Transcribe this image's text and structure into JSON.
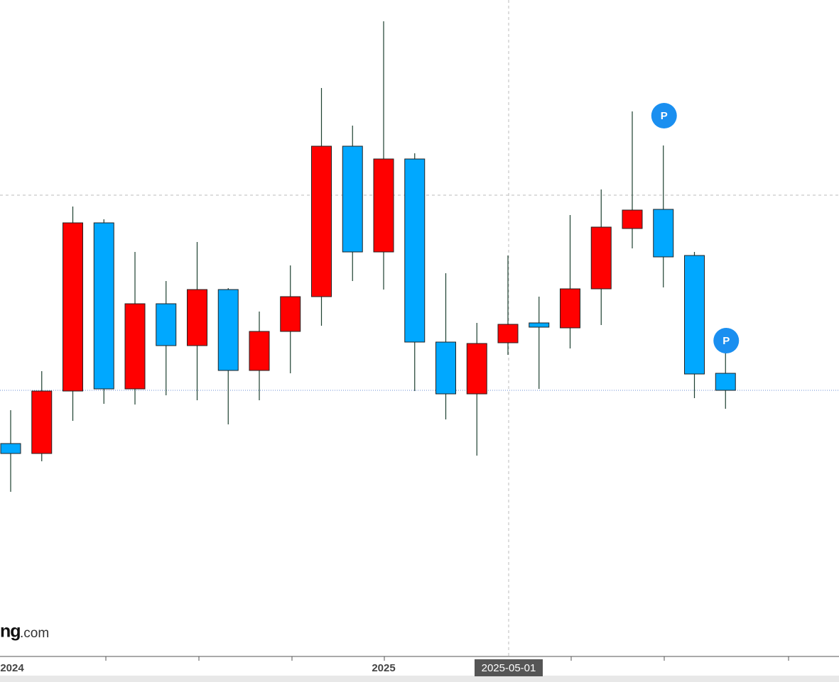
{
  "chart_data": {
    "type": "candlestick",
    "categories": [
      "2024",
      null,
      null,
      null,
      null,
      null,
      null,
      null,
      null,
      null,
      null,
      null,
      "2025",
      null,
      null,
      null,
      null,
      null,
      null,
      null,
      null,
      null,
      null,
      null
    ],
    "series": [
      {
        "up_color": "#ff0000",
        "down_color": "#00a8ff",
        "open": [
          300,
          286,
          374,
          611,
          377,
          497,
          438,
          517,
          403,
          458,
          507,
          719,
          570,
          701,
          443,
          370,
          442,
          470,
          463,
          518,
          603,
          630,
          565,
          399
        ],
        "high": [
          347,
          402,
          634,
          616,
          570,
          529,
          584,
          519,
          486,
          551,
          801,
          748,
          895,
          709,
          540,
          470,
          565,
          507,
          622,
          658,
          768,
          720,
          570,
          440
        ],
        "low": [
          232,
          275,
          332,
          356,
          355,
          368,
          361,
          327,
          361,
          399,
          466,
          529,
          517,
          374,
          334,
          283,
          425,
          377,
          434,
          467,
          575,
          520,
          364,
          349
        ],
        "close": [
          286,
          374,
          611,
          377,
          497,
          438,
          517,
          403,
          458,
          507,
          719,
          570,
          701,
          443,
          370,
          441,
          468,
          464,
          518,
          605,
          629,
          563,
          398,
          375
        ],
        "markers": [
          null,
          null,
          null,
          null,
          null,
          null,
          null,
          null,
          null,
          null,
          null,
          null,
          null,
          null,
          null,
          null,
          null,
          null,
          null,
          null,
          null,
          "P",
          null,
          "P"
        ]
      }
    ],
    "ylim": [
      0,
      925
    ],
    "last_price_line": 375,
    "crosshair": {
      "category_index": 16,
      "value": 650,
      "label": "2025-05-01"
    },
    "watermark": {
      "bold": "ng",
      "rest": ".com"
    }
  }
}
